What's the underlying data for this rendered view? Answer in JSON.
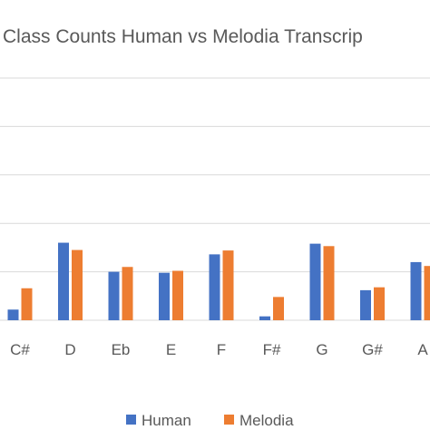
{
  "chart_data": {
    "type": "bar",
    "title": "Class Counts Human vs Melodia Transcrip",
    "xlabel": "",
    "ylabel": "",
    "categories": [
      "C#",
      "D",
      "Eb",
      "E",
      "F",
      "F#",
      "G",
      "G#",
      "A"
    ],
    "series": [
      {
        "name": "Human",
        "color": "#4472C4",
        "values": [
          0.22,
          1.6,
          1.0,
          0.98,
          1.36,
          0.08,
          1.58,
          0.62,
          1.2
        ]
      },
      {
        "name": "Melodia",
        "color": "#ED7D31",
        "values": [
          0.66,
          1.45,
          1.1,
          1.02,
          1.44,
          0.48,
          1.53,
          0.68,
          1.12
        ]
      }
    ],
    "ylim": [
      0,
      5
    ],
    "y_tick_labels_shown": false,
    "grid": true,
    "legend_position": "bottom"
  }
}
